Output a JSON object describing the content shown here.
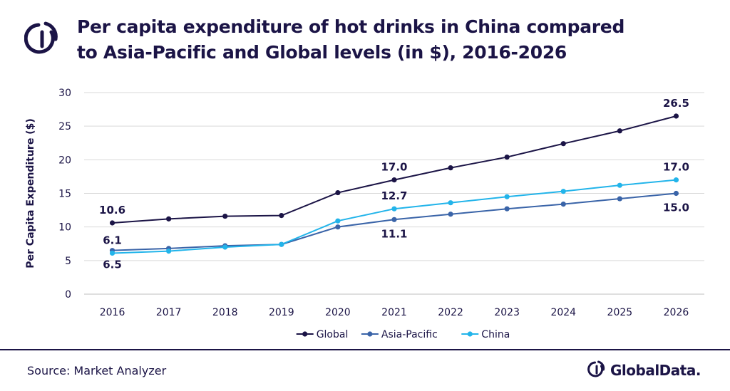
{
  "header": {
    "title_line1": "Per capita expenditure of hot drinks in China compared",
    "title_line2": "to Asia-Pacific and Global levels (in $), 2016-2026",
    "logo_icon": "globaldata-mark-icon"
  },
  "footer": {
    "source": "Source: Market Analyzer",
    "brand": "GlobalData."
  },
  "chart_data": {
    "type": "line",
    "title": "Per capita expenditure of hot drinks in China compared to Asia-Pacific and Global levels (in $), 2016-2026",
    "xlabel": "",
    "ylabel": "Per Capita Expenditure ($)",
    "ylim": [
      0,
      30
    ],
    "yticks": [
      0,
      5,
      10,
      15,
      20,
      25,
      30
    ],
    "grid": true,
    "legend_position": "bottom",
    "categories": [
      "2016",
      "2017",
      "2018",
      "2019",
      "2020",
      "2021",
      "2022",
      "2023",
      "2024",
      "2025",
      "2026"
    ],
    "series": [
      {
        "name": "Global",
        "color": "#1b1446",
        "values": [
          10.6,
          11.2,
          11.6,
          11.7,
          15.1,
          17.0,
          18.8,
          20.4,
          22.4,
          24.3,
          26.5
        ],
        "labels": [
          {
            "index": 0,
            "text": "10.6",
            "placement": "above"
          },
          {
            "index": 5,
            "text": "17.0",
            "placement": "above"
          },
          {
            "index": 10,
            "text": "26.5",
            "placement": "above"
          }
        ]
      },
      {
        "name": "Asia-Pacific",
        "color": "#3a64a8",
        "values": [
          6.5,
          6.8,
          7.2,
          7.4,
          10.0,
          11.1,
          11.9,
          12.7,
          13.4,
          14.2,
          15.0
        ],
        "labels": [
          {
            "index": 0,
            "text": "6.5",
            "placement": "below"
          },
          {
            "index": 5,
            "text": "11.1",
            "placement": "below"
          },
          {
            "index": 10,
            "text": "15.0",
            "placement": "below"
          }
        ]
      },
      {
        "name": "China",
        "color": "#22b4ea",
        "values": [
          6.1,
          6.4,
          7.0,
          7.4,
          10.9,
          12.7,
          13.6,
          14.5,
          15.3,
          16.2,
          17.0
        ],
        "labels": [
          {
            "index": 0,
            "text": "6.1",
            "placement": "above"
          },
          {
            "index": 5,
            "text": "12.7",
            "placement": "above"
          },
          {
            "index": 10,
            "text": "17.0",
            "placement": "above"
          }
        ]
      }
    ]
  }
}
